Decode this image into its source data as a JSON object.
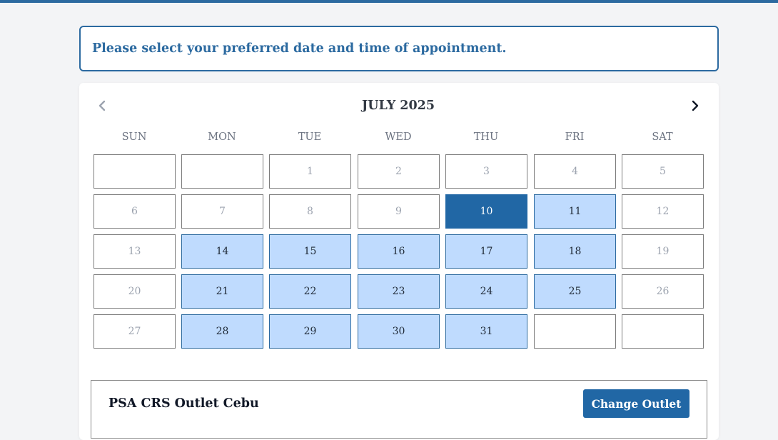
{
  "instruction": "Please select your preferred date and time of appointment.",
  "calendar": {
    "month_label": "JULY 2025",
    "weekdays": [
      "SUN",
      "MON",
      "TUE",
      "WED",
      "THU",
      "FRI",
      "SAT"
    ],
    "selected_day": "10",
    "weeks": [
      [
        {
          "day": "",
          "state": "empty"
        },
        {
          "day": "",
          "state": "empty"
        },
        {
          "day": "1",
          "state": "disabled"
        },
        {
          "day": "2",
          "state": "disabled"
        },
        {
          "day": "3",
          "state": "disabled"
        },
        {
          "day": "4",
          "state": "disabled"
        },
        {
          "day": "5",
          "state": "disabled"
        }
      ],
      [
        {
          "day": "6",
          "state": "disabled"
        },
        {
          "day": "7",
          "state": "disabled"
        },
        {
          "day": "8",
          "state": "disabled"
        },
        {
          "day": "9",
          "state": "disabled"
        },
        {
          "day": "10",
          "state": "selected"
        },
        {
          "day": "11",
          "state": "available"
        },
        {
          "day": "12",
          "state": "disabled"
        }
      ],
      [
        {
          "day": "13",
          "state": "disabled"
        },
        {
          "day": "14",
          "state": "available"
        },
        {
          "day": "15",
          "state": "available"
        },
        {
          "day": "16",
          "state": "available"
        },
        {
          "day": "17",
          "state": "available"
        },
        {
          "day": "18",
          "state": "available"
        },
        {
          "day": "19",
          "state": "disabled"
        }
      ],
      [
        {
          "day": "20",
          "state": "disabled"
        },
        {
          "day": "21",
          "state": "available"
        },
        {
          "day": "22",
          "state": "available"
        },
        {
          "day": "23",
          "state": "available"
        },
        {
          "day": "24",
          "state": "available"
        },
        {
          "day": "25",
          "state": "available"
        },
        {
          "day": "26",
          "state": "disabled"
        }
      ],
      [
        {
          "day": "27",
          "state": "disabled"
        },
        {
          "day": "28",
          "state": "available"
        },
        {
          "day": "29",
          "state": "available"
        },
        {
          "day": "30",
          "state": "available"
        },
        {
          "day": "31",
          "state": "available"
        },
        {
          "day": "",
          "state": "empty"
        },
        {
          "day": "",
          "state": "empty"
        }
      ]
    ]
  },
  "outlet": {
    "name": "PSA CRS Outlet Cebu",
    "change_label": "Change Outlet"
  },
  "icons": {
    "prev": "chevron-left-icon",
    "next": "chevron-right-icon"
  },
  "colors": {
    "accent": "#2167a5",
    "available_fill": "#bfdbfe",
    "page_bg": "#f3f4f6"
  }
}
